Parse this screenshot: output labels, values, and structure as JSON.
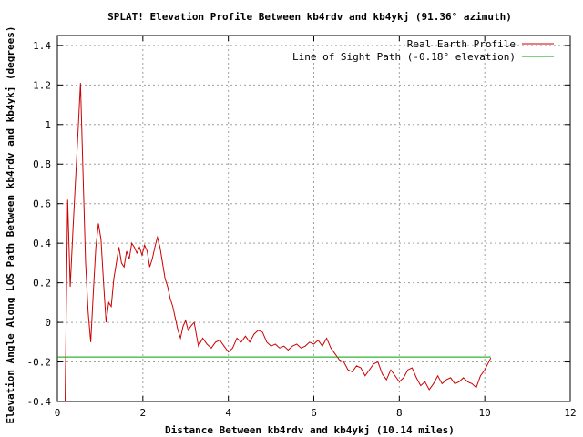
{
  "chart_data": {
    "type": "line",
    "title": "SPLAT! Elevation Profile Between kb4rdv and kb4ykj (91.36° azimuth)",
    "xlabel": "Distance Between kb4rdv and kb4ykj (10.14 miles)",
    "ylabel": "Elevation Angle Along LOS Path Between kb4rdv and kb4ykj (degrees)",
    "xlim": [
      0,
      12
    ],
    "ylim": [
      -0.4,
      1.45
    ],
    "xticks": [
      0,
      2,
      4,
      6,
      8,
      10,
      12
    ],
    "yticks": [
      -0.4,
      -0.2,
      0,
      0.2,
      0.4,
      0.6,
      0.8,
      1,
      1.2,
      1.4
    ],
    "xtick_labels": [
      "0",
      "2",
      "4",
      "6",
      "8",
      "10",
      "12"
    ],
    "ytick_labels": [
      "-0.4",
      "-0.2",
      "0",
      "0.2",
      "0.4",
      "0.6",
      "0.8",
      "1",
      "1.2",
      "1.4"
    ],
    "grid": true,
    "legend_position": "top-right",
    "series": [
      {
        "name": "Real Earth Profile",
        "color": "#cc0000",
        "x": [
          0.18,
          0.24,
          0.3,
          0.36,
          0.42,
          0.48,
          0.54,
          0.6,
          0.66,
          0.72,
          0.78,
          0.84,
          0.9,
          0.96,
          1.02,
          1.08,
          1.14,
          1.2,
          1.26,
          1.32,
          1.38,
          1.44,
          1.5,
          1.56,
          1.62,
          1.68,
          1.74,
          1.8,
          1.86,
          1.92,
          1.98,
          2.04,
          2.1,
          2.16,
          2.22,
          2.28,
          2.34,
          2.4,
          2.46,
          2.52,
          2.58,
          2.64,
          2.7,
          2.76,
          2.82,
          2.88,
          2.94,
          3.0,
          3.06,
          3.12,
          3.2,
          3.3,
          3.4,
          3.5,
          3.6,
          3.7,
          3.8,
          3.9,
          4.0,
          4.1,
          4.2,
          4.3,
          4.4,
          4.5,
          4.6,
          4.7,
          4.8,
          4.9,
          5.0,
          5.1,
          5.2,
          5.3,
          5.4,
          5.5,
          5.6,
          5.7,
          5.8,
          5.9,
          6.0,
          6.1,
          6.2,
          6.3,
          6.4,
          6.5,
          6.6,
          6.7,
          6.8,
          6.9,
          7.0,
          7.1,
          7.2,
          7.3,
          7.4,
          7.5,
          7.6,
          7.7,
          7.8,
          7.9,
          8.0,
          8.1,
          8.2,
          8.3,
          8.4,
          8.5,
          8.6,
          8.7,
          8.8,
          8.9,
          9.0,
          9.1,
          9.2,
          9.3,
          9.4,
          9.5,
          9.6,
          9.7,
          9.8,
          9.9,
          10.0,
          10.14
        ],
        "y": [
          -0.42,
          0.62,
          0.18,
          0.45,
          0.7,
          0.95,
          1.21,
          0.75,
          0.3,
          0.05,
          -0.1,
          0.15,
          0.38,
          0.5,
          0.42,
          0.2,
          0.0,
          0.1,
          0.08,
          0.22,
          0.3,
          0.38,
          0.3,
          0.28,
          0.36,
          0.32,
          0.4,
          0.38,
          0.35,
          0.38,
          0.34,
          0.39,
          0.36,
          0.28,
          0.32,
          0.38,
          0.43,
          0.38,
          0.3,
          0.22,
          0.18,
          0.12,
          0.08,
          0.02,
          -0.04,
          -0.08,
          -0.02,
          0.01,
          -0.04,
          -0.02,
          0.0,
          -0.12,
          -0.08,
          -0.11,
          -0.13,
          -0.1,
          -0.09,
          -0.12,
          -0.15,
          -0.13,
          -0.08,
          -0.1,
          -0.07,
          -0.1,
          -0.06,
          -0.04,
          -0.05,
          -0.1,
          -0.12,
          -0.11,
          -0.13,
          -0.12,
          -0.14,
          -0.12,
          -0.11,
          -0.13,
          -0.12,
          -0.1,
          -0.11,
          -0.09,
          -0.12,
          -0.08,
          -0.13,
          -0.16,
          -0.19,
          -0.2,
          -0.24,
          -0.25,
          -0.22,
          -0.23,
          -0.27,
          -0.24,
          -0.21,
          -0.2,
          -0.26,
          -0.29,
          -0.24,
          -0.27,
          -0.3,
          -0.28,
          -0.24,
          -0.23,
          -0.28,
          -0.32,
          -0.3,
          -0.34,
          -0.31,
          -0.27,
          -0.31,
          -0.29,
          -0.28,
          -0.31,
          -0.3,
          -0.28,
          -0.3,
          -0.31,
          -0.33,
          -0.27,
          -0.24,
          -0.18
        ]
      },
      {
        "name": "Line of Sight Path (-0.18° elevation)",
        "color": "#00a000",
        "x": [
          0.0,
          10.14
        ],
        "y": [
          -0.175,
          -0.175
        ]
      }
    ]
  }
}
